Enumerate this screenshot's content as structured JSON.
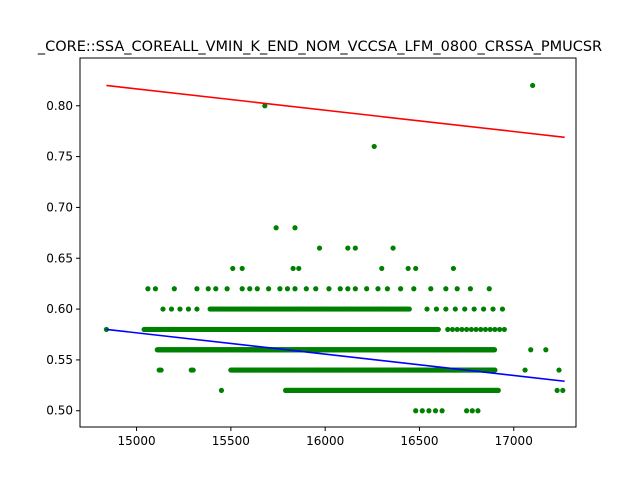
{
  "chart_data": {
    "type": "scatter",
    "title": "_CORE::SSA_COREALL_VMIN_K_END_NOM_VCCSA_LFM_0800_CRSSA_PMUCSR",
    "xlabel": "",
    "ylabel": "",
    "xlim": [
      14700,
      17330
    ],
    "ylim": [
      0.484,
      0.847
    ],
    "x_ticks": [
      15000,
      15500,
      16000,
      16500,
      17000
    ],
    "x_tick_labels": [
      "15000",
      "15500",
      "16000",
      "16500",
      "17000"
    ],
    "y_ticks": [
      0.5,
      0.55,
      0.6,
      0.65,
      0.7,
      0.75,
      0.8
    ],
    "y_tick_labels": [
      "0.50",
      "0.55",
      "0.60",
      "0.65",
      "0.70",
      "0.75",
      "0.80"
    ],
    "grid": false,
    "colors": {
      "points": "#008000",
      "upper_line": "#ff0000",
      "lower_line": "#0000ff"
    },
    "point_rows": [
      {
        "y": 0.5,
        "x_start": 16480,
        "x_end": 16620,
        "step": 35
      },
      {
        "y": 0.5,
        "x_start": 16750,
        "x_end": 16830,
        "step": 30
      },
      {
        "y": 0.52,
        "x_start": 15790,
        "x_end": 16920,
        "step": 6
      },
      {
        "y": 0.52,
        "x_start": 17230,
        "x_end": 17270,
        "step": 30
      },
      {
        "y": 0.54,
        "x_start": 15500,
        "x_end": 16900,
        "step": 4
      },
      {
        "y": 0.54,
        "x_start": 15120,
        "x_end": 15130,
        "step": 10
      },
      {
        "y": 0.54,
        "x_start": 15290,
        "x_end": 15300,
        "step": 10
      },
      {
        "y": 0.54,
        "x_start": 17060,
        "x_end": 17060,
        "step": 10
      },
      {
        "y": 0.54,
        "x_start": 17240,
        "x_end": 17240,
        "step": 10
      },
      {
        "y": 0.56,
        "x_start": 15110,
        "x_end": 16900,
        "step": 4
      },
      {
        "y": 0.56,
        "x_start": 17090,
        "x_end": 17090,
        "step": 10
      },
      {
        "y": 0.56,
        "x_start": 17170,
        "x_end": 17170,
        "step": 10
      },
      {
        "y": 0.58,
        "x_start": 15040,
        "x_end": 16600,
        "step": 5
      },
      {
        "y": 0.58,
        "x_start": 16650,
        "x_end": 16970,
        "step": 25
      },
      {
        "y": 0.6,
        "x_start": 15390,
        "x_end": 16450,
        "step": 8
      },
      {
        "y": 0.6,
        "x_start": 15140,
        "x_end": 15320,
        "step": 45
      },
      {
        "y": 0.6,
        "x_start": 16540,
        "x_end": 16940,
        "step": 50
      }
    ],
    "points": [
      {
        "x": 14840,
        "y": 0.58
      },
      {
        "x": 15450,
        "y": 0.52
      },
      {
        "x": 15060,
        "y": 0.62
      },
      {
        "x": 15100,
        "y": 0.62
      },
      {
        "x": 15200,
        "y": 0.62
      },
      {
        "x": 15320,
        "y": 0.62
      },
      {
        "x": 15380,
        "y": 0.62
      },
      {
        "x": 15420,
        "y": 0.62
      },
      {
        "x": 15480,
        "y": 0.62
      },
      {
        "x": 15560,
        "y": 0.62
      },
      {
        "x": 15600,
        "y": 0.62
      },
      {
        "x": 15640,
        "y": 0.62
      },
      {
        "x": 15700,
        "y": 0.62
      },
      {
        "x": 15760,
        "y": 0.62
      },
      {
        "x": 15800,
        "y": 0.62
      },
      {
        "x": 15840,
        "y": 0.62
      },
      {
        "x": 15900,
        "y": 0.62
      },
      {
        "x": 15950,
        "y": 0.62
      },
      {
        "x": 16020,
        "y": 0.62
      },
      {
        "x": 16080,
        "y": 0.62
      },
      {
        "x": 16120,
        "y": 0.62
      },
      {
        "x": 16160,
        "y": 0.62
      },
      {
        "x": 16220,
        "y": 0.62
      },
      {
        "x": 16280,
        "y": 0.62
      },
      {
        "x": 16330,
        "y": 0.62
      },
      {
        "x": 16400,
        "y": 0.62
      },
      {
        "x": 16470,
        "y": 0.62
      },
      {
        "x": 16560,
        "y": 0.62
      },
      {
        "x": 16640,
        "y": 0.62
      },
      {
        "x": 16700,
        "y": 0.62
      },
      {
        "x": 16770,
        "y": 0.62
      },
      {
        "x": 16870,
        "y": 0.62
      },
      {
        "x": 15510,
        "y": 0.64
      },
      {
        "x": 15560,
        "y": 0.64
      },
      {
        "x": 15830,
        "y": 0.64
      },
      {
        "x": 15860,
        "y": 0.64
      },
      {
        "x": 16300,
        "y": 0.64
      },
      {
        "x": 16440,
        "y": 0.64
      },
      {
        "x": 16480,
        "y": 0.64
      },
      {
        "x": 16680,
        "y": 0.64
      },
      {
        "x": 15970,
        "y": 0.66
      },
      {
        "x": 16120,
        "y": 0.66
      },
      {
        "x": 16160,
        "y": 0.66
      },
      {
        "x": 16360,
        "y": 0.66
      },
      {
        "x": 15740,
        "y": 0.68
      },
      {
        "x": 15840,
        "y": 0.68
      },
      {
        "x": 16260,
        "y": 0.76
      },
      {
        "x": 15680,
        "y": 0.8
      },
      {
        "x": 17100,
        "y": 0.82
      }
    ],
    "lines": [
      {
        "name": "",
        "color": "#ff0000",
        "x": [
          14840,
          17270
        ],
        "y": [
          0.82,
          0.769
        ]
      },
      {
        "name": "",
        "color": "#0000ff",
        "x": [
          14840,
          17270
        ],
        "y": [
          0.58,
          0.529
        ]
      }
    ]
  }
}
